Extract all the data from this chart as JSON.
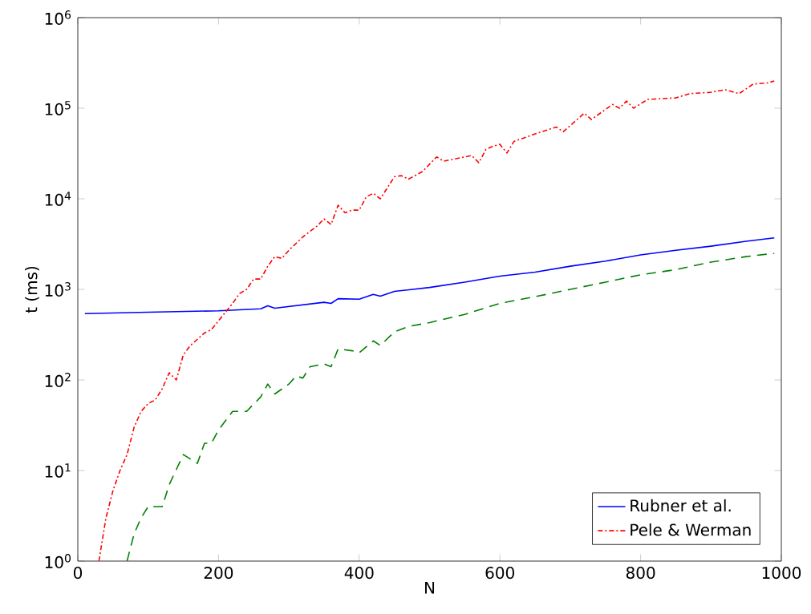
{
  "chart_data": {
    "type": "line",
    "xlabel": "N",
    "ylabel": "t (ms)",
    "log": "y",
    "xlim": [
      0,
      1000
    ],
    "ylim": [
      1,
      1000000
    ],
    "xticks": [
      0,
      200,
      400,
      600,
      800,
      1000
    ],
    "yticks": [
      {
        "value": 1,
        "label": "10$^{0}$"
      },
      {
        "value": 10,
        "label": "10$^{1}$"
      },
      {
        "value": 100,
        "label": "10$^{2}$"
      },
      {
        "value": 1000,
        "label": "10$^{3}$"
      },
      {
        "value": 10000,
        "label": "10$^{4}$"
      },
      {
        "value": 100000,
        "label": "10$^{5}$"
      },
      {
        "value": 1000000,
        "label": "10$^{6}$"
      }
    ],
    "grid": false,
    "legend": "bottom right",
    "series": [
      {
        "name": "Rubner et al.",
        "color": "#0000ff",
        "line_style": "solid",
        "x": [
          10,
          100,
          200,
          260,
          270,
          280,
          350,
          360,
          370,
          400,
          420,
          430,
          450,
          500,
          550,
          600,
          650,
          700,
          750,
          800,
          850,
          900,
          950,
          990
        ],
        "values": [
          540,
          560,
          580,
          610,
          660,
          620,
          720,
          700,
          790,
          780,
          880,
          840,
          950,
          1050,
          1200,
          1400,
          1550,
          1800,
          2050,
          2400,
          2700,
          3000,
          3400,
          3700
        ]
      },
      {
        "color": "#008000",
        "line_style": "dashed",
        "x": [
          70,
          80,
          90,
          100,
          120,
          130,
          150,
          170,
          180,
          190,
          200,
          220,
          240,
          260,
          270,
          280,
          300,
          310,
          320,
          330,
          350,
          360,
          370,
          390,
          400,
          420,
          430,
          450,
          470,
          500,
          550,
          600,
          650,
          700,
          750,
          800,
          850,
          900,
          950,
          990
        ],
        "values": [
          1,
          2,
          3,
          4,
          4,
          7,
          15,
          12,
          20,
          20,
          28,
          45,
          45,
          65,
          90,
          70,
          90,
          110,
          105,
          140,
          150,
          140,
          220,
          210,
          200,
          270,
          240,
          340,
          390,
          430,
          530,
          700,
          830,
          1000,
          1200,
          1450,
          1650,
          2000,
          2300,
          2500
        ]
      },
      {
        "name": "Pele & Werman",
        "color": "#ff0000",
        "line_style": "dashdot",
        "x": [
          30,
          40,
          50,
          60,
          70,
          80,
          90,
          100,
          110,
          120,
          130,
          140,
          150,
          160,
          180,
          190,
          200,
          220,
          230,
          240,
          250,
          260,
          270,
          280,
          290,
          300,
          320,
          340,
          350,
          360,
          370,
          380,
          390,
          400,
          410,
          420,
          430,
          450,
          460,
          470,
          490,
          510,
          520,
          540,
          560,
          570,
          580,
          590,
          600,
          610,
          620,
          650,
          680,
          690,
          720,
          730,
          760,
          770,
          780,
          790,
          810,
          850,
          870,
          900,
          920,
          940,
          960,
          980,
          990
        ],
        "values": [
          1,
          3,
          6,
          10,
          15,
          30,
          45,
          55,
          60,
          80,
          120,
          100,
          190,
          240,
          330,
          360,
          450,
          700,
          900,
          1000,
          1300,
          1300,
          1800,
          2300,
          2200,
          2700,
          3800,
          5000,
          6000,
          5200,
          8500,
          7000,
          7500,
          7500,
          10500,
          11500,
          10000,
          17500,
          18000,
          16500,
          20000,
          29000,
          26000,
          28000,
          30000,
          25000,
          35000,
          38000,
          40000,
          32000,
          43000,
          52000,
          62000,
          55000,
          88000,
          75000,
          110000,
          100000,
          120000,
          100000,
          125000,
          130000,
          145000,
          150000,
          160000,
          145000,
          185000,
          190000,
          200000
        ]
      }
    ]
  }
}
